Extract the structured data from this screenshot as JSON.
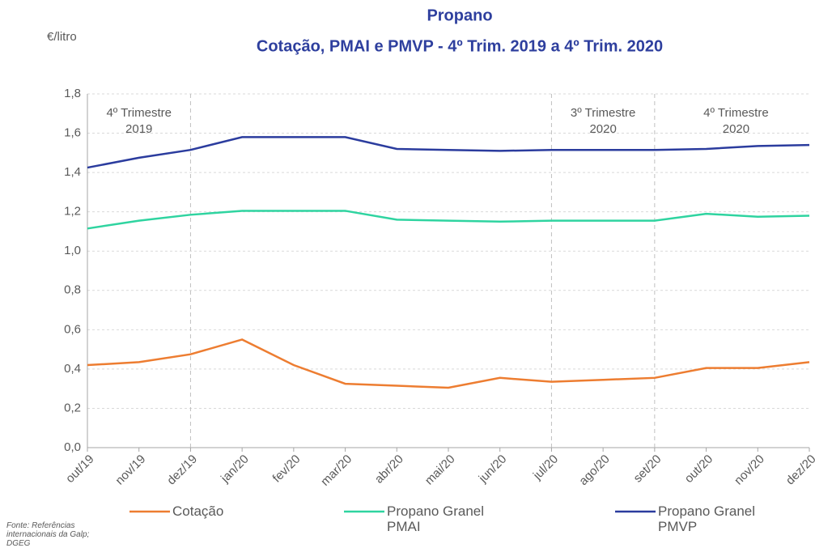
{
  "chart_data": {
    "type": "line",
    "title": [
      "Propano",
      "Cotação, PMAI e PMVP - 4º Trim. 2019 a 4º Trim. 2020"
    ],
    "y_label": "€/litro",
    "source": "Fonte: Referências internacionais da Galp; DGEG",
    "categories": [
      "out/19",
      "nov/19",
      "dez/19",
      "jan/20",
      "fev/20",
      "mar/20",
      "abr/20",
      "mai/20",
      "jun/20",
      "jul/20",
      "ago/20",
      "set/20",
      "out/20",
      "nov/20",
      "dez/20"
    ],
    "series": [
      {
        "name": "Cotação",
        "color": "#ed7d31",
        "values": [
          0.42,
          0.435,
          0.475,
          0.55,
          0.42,
          0.325,
          0.315,
          0.305,
          0.355,
          0.335,
          0.345,
          0.355,
          0.405,
          0.405,
          0.435
        ]
      },
      {
        "name": "Propano Granel PMAI",
        "color": "#2fd4a0",
        "values": [
          1.115,
          1.155,
          1.185,
          1.205,
          1.205,
          1.205,
          1.16,
          1.155,
          1.15,
          1.155,
          1.155,
          1.155,
          1.19,
          1.175,
          1.18
        ]
      },
      {
        "name": "Propano Granel PMVP",
        "color": "#2b3c9e",
        "values": [
          1.425,
          1.475,
          1.515,
          1.58,
          1.58,
          1.58,
          1.52,
          1.515,
          1.51,
          1.515,
          1.515,
          1.515,
          1.52,
          1.535,
          1.54
        ]
      }
    ],
    "annotations": [
      [
        "4º Trimestre",
        "2019"
      ],
      [
        "3º Trimestre",
        "2020"
      ],
      [
        "4º Trimestre",
        "2020"
      ]
    ],
    "ylim": [
      0,
      1.8
    ],
    "yticks": [
      {
        "value": 0,
        "label": "0,0"
      },
      {
        "value": 0.2,
        "label": "0,2"
      },
      {
        "value": 0.4,
        "label": "0,4"
      },
      {
        "value": 0.6,
        "label": "0,6"
      },
      {
        "value": 0.8,
        "label": "0,8"
      },
      {
        "value": 1.0,
        "label": "1,0"
      },
      {
        "value": 1.2,
        "label": "1,2"
      },
      {
        "value": 1.4,
        "label": "1,4"
      },
      {
        "value": 1.6,
        "label": "1,6"
      },
      {
        "value": 1.8,
        "label": "1,8"
      }
    ],
    "grid": true
  }
}
